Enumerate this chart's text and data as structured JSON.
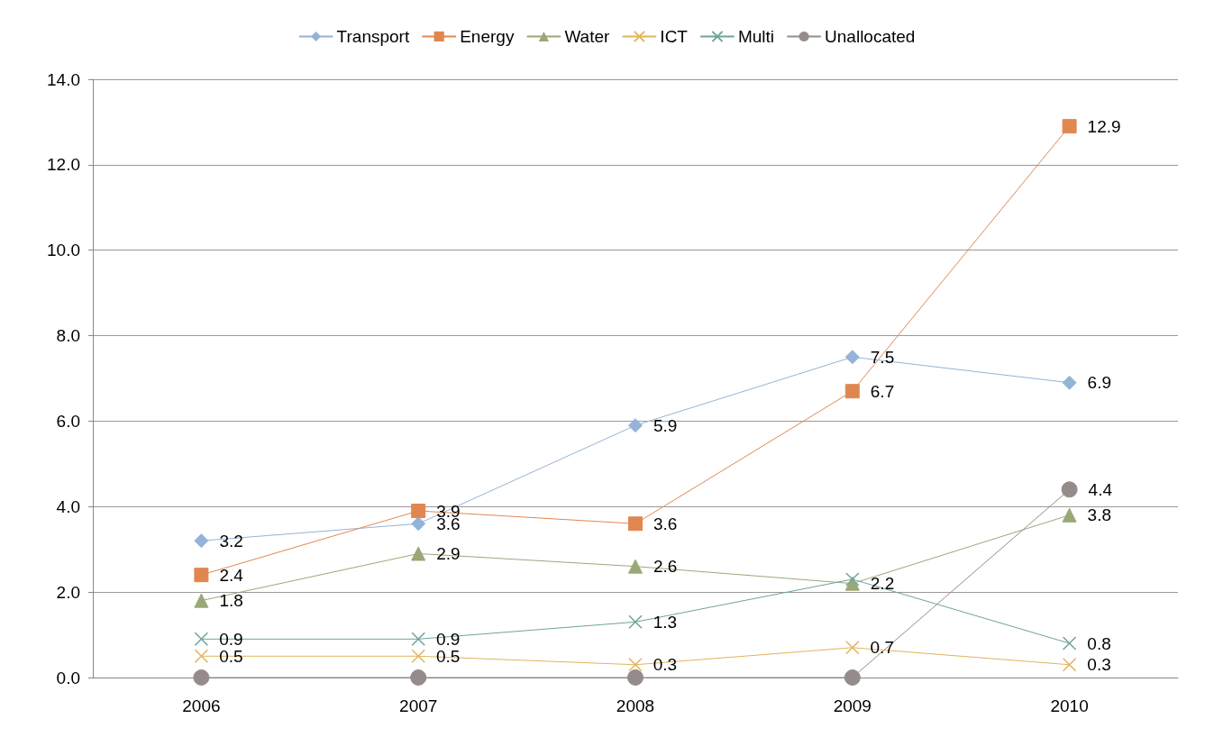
{
  "chart_data": {
    "type": "line",
    "categories": [
      "2006",
      "2007",
      "2008",
      "2009",
      "2010"
    ],
    "series": [
      {
        "name": "Transport",
        "color": "#95b3d7",
        "marker": "diamond",
        "values": [
          3.2,
          3.6,
          5.9,
          7.5,
          6.9
        ],
        "value_labels": [
          "3.2",
          "3.6",
          "5.9",
          "7.5",
          "6.9"
        ]
      },
      {
        "name": "Energy",
        "color": "#e0874f",
        "marker": "square",
        "values": [
          2.4,
          3.9,
          3.6,
          6.7,
          12.9
        ],
        "value_labels": [
          "2.4",
          "3.9",
          "3.6",
          "6.7",
          "12.9"
        ]
      },
      {
        "name": "Water",
        "color": "#9aa878",
        "marker": "triangle",
        "values": [
          1.8,
          2.9,
          2.6,
          2.2,
          3.8
        ],
        "value_labels": [
          "1.8",
          "2.9",
          "2.6",
          "2.2",
          "3.8"
        ]
      },
      {
        "name": "ICT",
        "color": "#e2b45c",
        "marker": "cross",
        "values": [
          0.5,
          0.5,
          0.3,
          0.7,
          0.3
        ],
        "value_labels": [
          "0.5",
          "0.5",
          "0.3",
          "0.7",
          "0.3"
        ]
      },
      {
        "name": "Multi",
        "color": "#6fa39b",
        "marker": "cross",
        "values": [
          0.9,
          0.9,
          1.3,
          2.3,
          0.8
        ],
        "value_labels": [
          "0.9",
          "0.9",
          "1.3",
          null,
          "0.8"
        ]
      },
      {
        "name": "Unallocated",
        "color": "#968b8b",
        "marker": "circle",
        "values": [
          0,
          0,
          0,
          0,
          4.4
        ],
        "value_labels": [
          null,
          null,
          null,
          null,
          "4.4"
        ]
      }
    ],
    "ylim": [
      0,
      14
    ],
    "yticks": [
      {
        "value": 0,
        "label": "0.0"
      },
      {
        "value": 2,
        "label": "2.0"
      },
      {
        "value": 4,
        "label": "4.0"
      },
      {
        "value": 6,
        "label": "6.0"
      },
      {
        "value": 8,
        "label": "8.0"
      },
      {
        "value": 10,
        "label": "10.0"
      },
      {
        "value": 12,
        "label": "12.0"
      },
      {
        "value": 14,
        "label": "14.0"
      }
    ],
    "grid": "y",
    "legend": "top",
    "line_style": "solid"
  }
}
